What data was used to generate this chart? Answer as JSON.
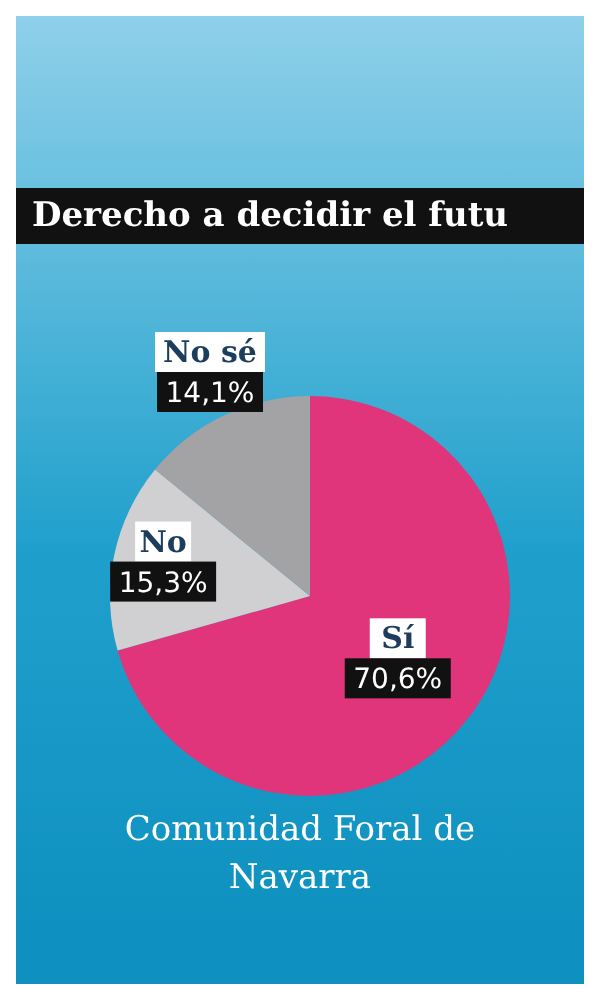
{
  "chart_data": {
    "type": "pie",
    "title": "Derecho a decidir el futu",
    "xlabel": "Comunidad Foral de Navarra",
    "categories": [
      "Sí",
      "No",
      "No sé"
    ],
    "values": [
      70.6,
      15.3,
      14.1
    ],
    "colors": [
      "#e0357a",
      "#d0d0d2",
      "#a3a3a6"
    ],
    "value_labels": [
      "70,6%",
      "15,3%",
      "14,1%"
    ]
  }
}
